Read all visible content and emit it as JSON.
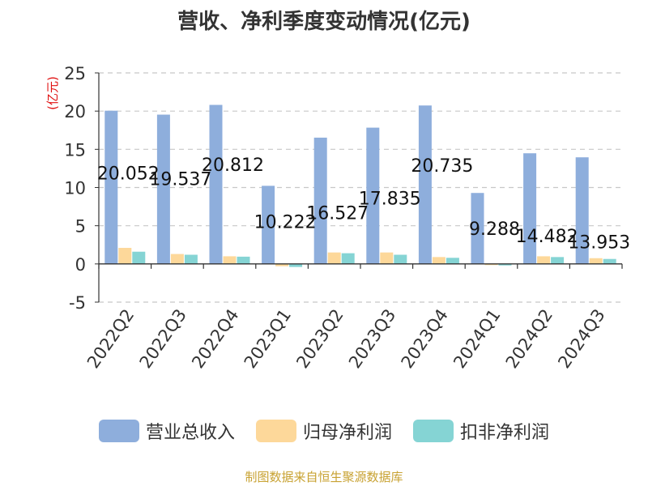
{
  "chart_data": {
    "type": "bar",
    "title": "营收、净利季度变动情况(亿元)",
    "ylabel": "(亿元)",
    "xlabel": "",
    "categories": [
      "2022Q2",
      "2022Q3",
      "2022Q4",
      "2023Q1",
      "2023Q2",
      "2023Q3",
      "2023Q4",
      "2024Q1",
      "2024Q2",
      "2024Q3"
    ],
    "series": [
      {
        "name": "营业总收入",
        "color": "#8eaedc",
        "values": [
          20.052,
          19.537,
          20.812,
          10.222,
          16.527,
          17.835,
          20.735,
          9.288,
          14.482,
          13.953
        ],
        "labeled": true
      },
      {
        "name": "归母净利润",
        "color": "#fdd89a",
        "values": [
          2.1,
          1.3,
          1.0,
          -0.3,
          1.5,
          1.5,
          0.9,
          -0.15,
          1.0,
          0.75
        ],
        "labeled": false
      },
      {
        "name": "扣非净利润",
        "color": "#85d4d4",
        "values": [
          1.6,
          1.2,
          0.95,
          -0.4,
          1.4,
          1.2,
          0.8,
          -0.2,
          0.9,
          0.65
        ],
        "labeled": false
      }
    ],
    "ylim": [
      -5,
      25
    ],
    "yticks": [
      -5,
      0,
      5,
      10,
      15,
      20,
      25
    ],
    "grid": true,
    "legend_position": "bottom"
  },
  "footer": {
    "source": "制图数据来自恒生聚源数据库"
  }
}
